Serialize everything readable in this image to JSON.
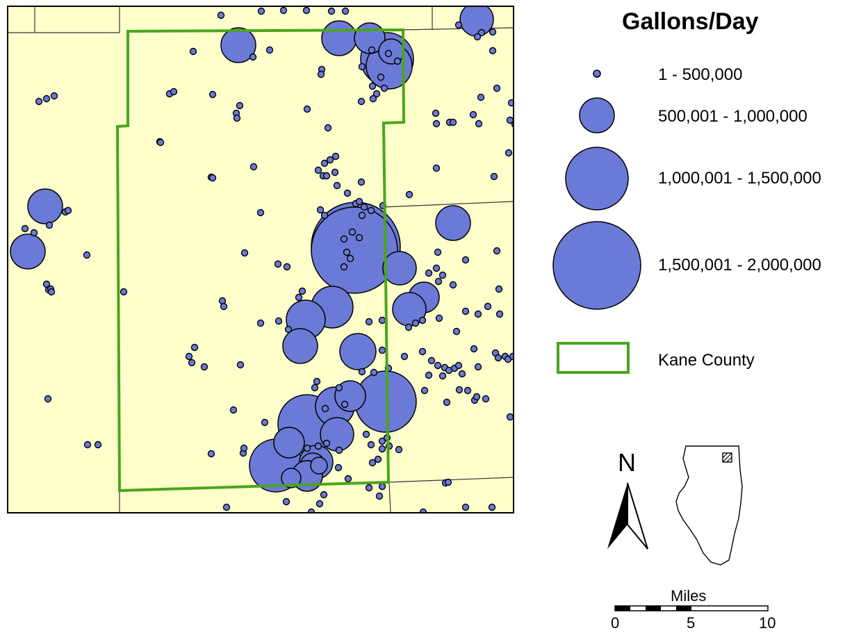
{
  "legend": {
    "title": "Gallons/Day",
    "classes": [
      {
        "label": "1 - 500,000",
        "symbol": "small-circle"
      },
      {
        "label": "500,001 - 1,000,000",
        "symbol": "medium-circle"
      },
      {
        "label": "1,000,001 - 1,500,000",
        "symbol": "large-circle"
      },
      {
        "label": "1,500,001 - 2,000,000",
        "symbol": "largest-circle"
      }
    ],
    "boundary_label": "Kane County"
  },
  "north_arrow": {
    "label": "N"
  },
  "scale_bar": {
    "title": "Miles",
    "ticks": [
      "0",
      "5",
      "10"
    ]
  },
  "colors": {
    "background": "#ffffcc",
    "well": "#6b7ad6",
    "county_boundary": "#4aa51c",
    "outline": "#000000"
  }
}
